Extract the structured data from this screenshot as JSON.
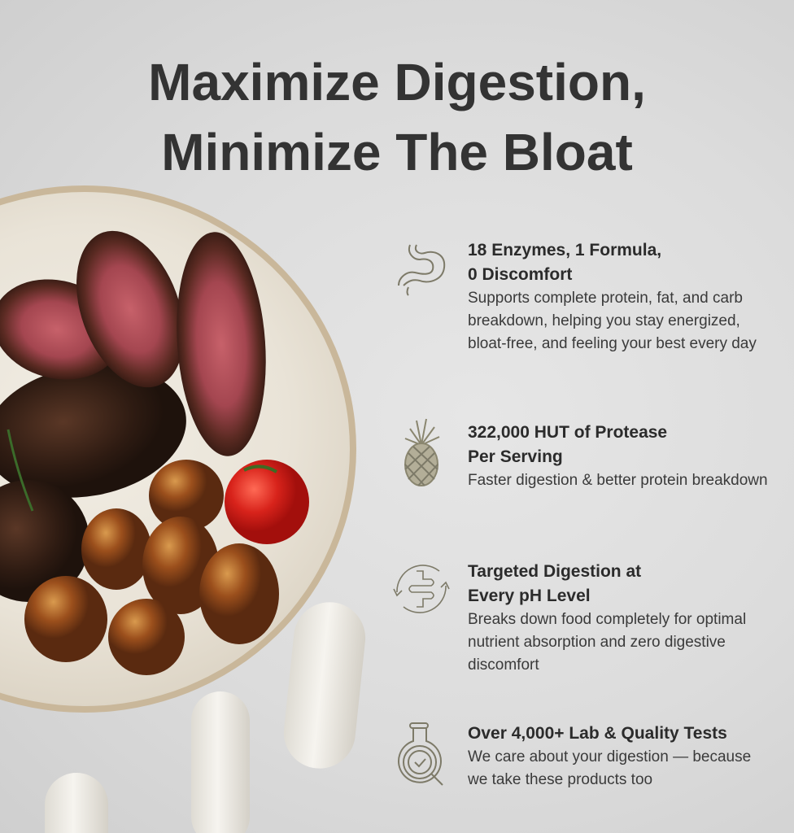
{
  "headline": {
    "line1": "Maximize Digestion,",
    "line2": "Minimize The Bloat"
  },
  "features": [
    {
      "icon": "stomach-icon",
      "title_line1": "18 Enzymes, 1 Formula,",
      "title_line2": "0 Discomfort",
      "description": "Supports complete protein, fat, and carb breakdown, helping you stay energized, bloat-free, and feeling your best every day"
    },
    {
      "icon": "pineapple-icon",
      "title_line1": "322,000 HUT of Protease",
      "title_line2": "Per Serving",
      "description": "Faster digestion & better protein breakdown"
    },
    {
      "icon": "intestine-cycle-icon",
      "title_line1": "Targeted Digestion at",
      "title_line2": "Every pH Level",
      "description": "Breaks down food completely for optimal nutrient absorption and zero digestive discomfort"
    },
    {
      "icon": "flask-magnifier-check-icon",
      "title_line1": "Over 4,000+ Lab & Quality Tests",
      "title_line2": "",
      "description": "We care about your digestion — because we take these products too"
    }
  ],
  "colors": {
    "icon_stroke": "#7d7a68",
    "headline": "#333333"
  }
}
